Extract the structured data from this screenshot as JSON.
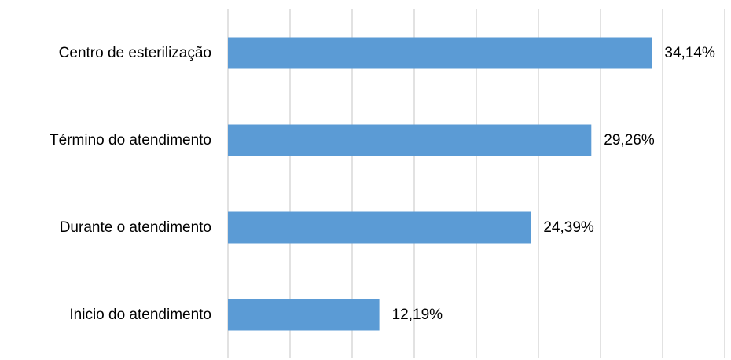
{
  "chart_data": {
    "type": "bar",
    "orientation": "horizontal",
    "categories": [
      "Centro de esterilização",
      "Término do atendimento",
      "Durante o atendimento",
      "Inicio do atendimento"
    ],
    "values": [
      34.14,
      29.26,
      24.39,
      12.19
    ],
    "value_labels": [
      "34,14%",
      "29,26%",
      "24,39%",
      "12,19%"
    ],
    "xlim": [
      0,
      40
    ],
    "grid": "vertical",
    "legend": "none",
    "bar_color": "#5b9bd5",
    "gridline_color": "#d9d9d9"
  }
}
